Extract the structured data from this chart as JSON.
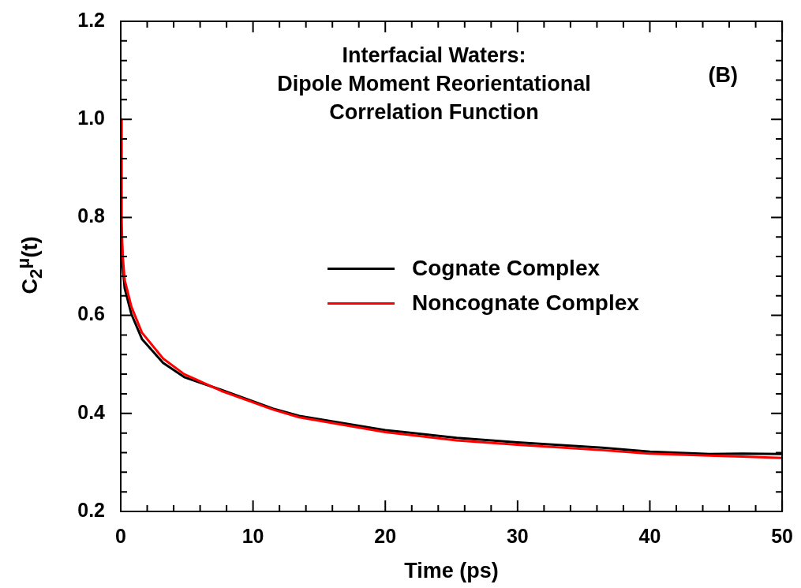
{
  "chart_data": {
    "type": "line",
    "title": "Interfacial Waters:\nDipole Moment Reorientational\nCorrelation Function",
    "xlabel": "Time (ps)",
    "ylabel": "C$_{2}$$^{μ}$(t)",
    "annotations": [
      "(B)"
    ],
    "xlim": [
      0,
      50
    ],
    "ylim": [
      0.2,
      1.2
    ],
    "xticks": [
      0,
      {
        "value": 2,
        "label": null
      },
      {
        "value": 4,
        "label": null
      },
      {
        "value": 6,
        "label": null
      },
      {
        "value": 8,
        "label": null
      },
      10,
      {
        "value": 12,
        "label": null
      },
      {
        "value": 14,
        "label": null
      },
      {
        "value": 16,
        "label": null
      },
      {
        "value": 18,
        "label": null
      },
      20,
      {
        "value": 22,
        "label": null
      },
      {
        "value": 24,
        "label": null
      },
      {
        "value": 26,
        "label": null
      },
      {
        "value": 28,
        "label": null
      },
      30,
      {
        "value": 32,
        "label": null
      },
      {
        "value": 34,
        "label": null
      },
      {
        "value": 36,
        "label": null
      },
      {
        "value": 38,
        "label": null
      },
      40,
      {
        "value": 42,
        "label": null
      },
      {
        "value": 44,
        "label": null
      },
      {
        "value": 46,
        "label": null
      },
      {
        "value": 48,
        "label": null
      },
      50
    ],
    "yticks": [
      {
        "value": 0.2,
        "label": "0.2"
      },
      {
        "value": 0.24,
        "label": null
      },
      {
        "value": 0.28,
        "label": null
      },
      {
        "value": 0.32,
        "label": null
      },
      {
        "value": 0.36,
        "label": null
      },
      {
        "value": 0.4,
        "label": "0.4"
      },
      {
        "value": 0.44,
        "label": null
      },
      {
        "value": 0.48,
        "label": null
      },
      {
        "value": 0.52,
        "label": null
      },
      {
        "value": 0.56,
        "label": null
      },
      {
        "value": 0.6,
        "label": "0.6"
      },
      {
        "value": 0.64,
        "label": null
      },
      {
        "value": 0.68,
        "label": null
      },
      {
        "value": 0.72,
        "label": null
      },
      {
        "value": 0.76,
        "label": null
      },
      {
        "value": 0.8,
        "label": "0.8"
      },
      {
        "value": 0.84,
        "label": null
      },
      {
        "value": 0.88,
        "label": null
      },
      {
        "value": 0.92,
        "label": null
      },
      {
        "value": 0.96,
        "label": null
      },
      {
        "value": 1.0,
        "label": "1.0"
      },
      {
        "value": 1.04,
        "label": null
      },
      {
        "value": 1.08,
        "label": null
      },
      {
        "value": 1.12,
        "label": null
      },
      {
        "value": 1.16,
        "label": null
      },
      {
        "value": 1.2,
        "label": "1.2"
      }
    ],
    "x": [
      0,
      0.05,
      0.15,
      0.3,
      0.8,
      1.6,
      3.2,
      4.8,
      7.6,
      11.5,
      13.5,
      20,
      25.4,
      30,
      36.4,
      40,
      44.5,
      47,
      50
    ],
    "series": [
      {
        "name": "Cognate Complex",
        "color": "#000000",
        "values": [
          1.0,
          0.78,
          0.7,
          0.655,
          0.603,
          0.552,
          0.503,
          0.474,
          0.448,
          0.41,
          0.395,
          0.366,
          0.35,
          0.341,
          0.33,
          0.322,
          0.317,
          0.318,
          0.317
        ]
      },
      {
        "name": "Noncognate Complex",
        "color": "#ff0000",
        "values": [
          1.0,
          0.8,
          0.72,
          0.672,
          0.618,
          0.565,
          0.512,
          0.48,
          0.446,
          0.408,
          0.392,
          0.362,
          0.345,
          0.336,
          0.325,
          0.318,
          0.314,
          0.312,
          0.309
        ]
      }
    ],
    "legend": "right",
    "grid": false,
    "marker": "none",
    "line_style": "solid"
  }
}
